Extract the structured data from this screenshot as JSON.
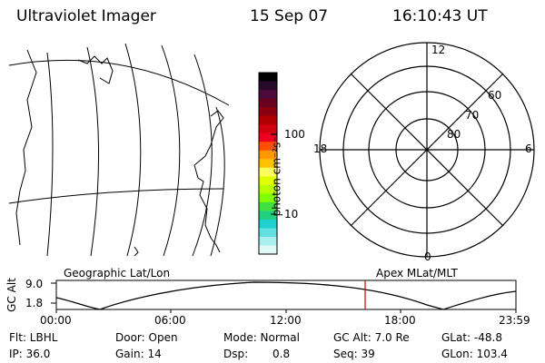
{
  "header": {
    "instrument": "Ultraviolet Imager",
    "date": "15 Sep 07",
    "time": "16:10:43 UT"
  },
  "colorbar": {
    "unit_label": "photon cm⁻²s⁻¹",
    "ticks": [
      "100",
      "10"
    ],
    "colors": [
      "#000000",
      "#2a0a2a",
      "#4a0a3a",
      "#6a0020",
      "#8a0010",
      "#b00000",
      "#d00010",
      "#f00020",
      "#ff5000",
      "#ff9900",
      "#ffc000",
      "#ffff60",
      "#e0ff00",
      "#b8ff00",
      "#80ff00",
      "#40e040",
      "#20d080",
      "#20d0d0",
      "#60e0e0",
      "#a8f0f0",
      "#e0f8f8"
    ]
  },
  "polar_plot": {
    "mlt_labels": {
      "top": "12",
      "bottom": "0",
      "left": "18",
      "right": "6"
    },
    "lat_labels": [
      "60",
      "70",
      "80"
    ]
  },
  "timeline": {
    "left_label": "Geographic Lat/Lon",
    "right_label": "Apex MLat/MLT",
    "y_axis_label": "GC Alt",
    "y_ticks": [
      "9.0",
      "1.8"
    ],
    "x_ticks": [
      "00:00",
      "06:00",
      "12:00",
      "18:00",
      "23:59"
    ],
    "marker_color": "#d00000"
  },
  "info": {
    "filter": "Flt: LBHL",
    "ip": "IP: 36.0",
    "door": "Door: Open",
    "gain": "Gain: 14",
    "mode": "Mode: Normal",
    "dsp": "Dsp:",
    "dsp_value": "0.8",
    "gc_alt": "GC Alt: 7.0 Re",
    "seq": "Seq: 39",
    "glat": "GLat: -48.8",
    "glon": "GLon: 103.4"
  }
}
